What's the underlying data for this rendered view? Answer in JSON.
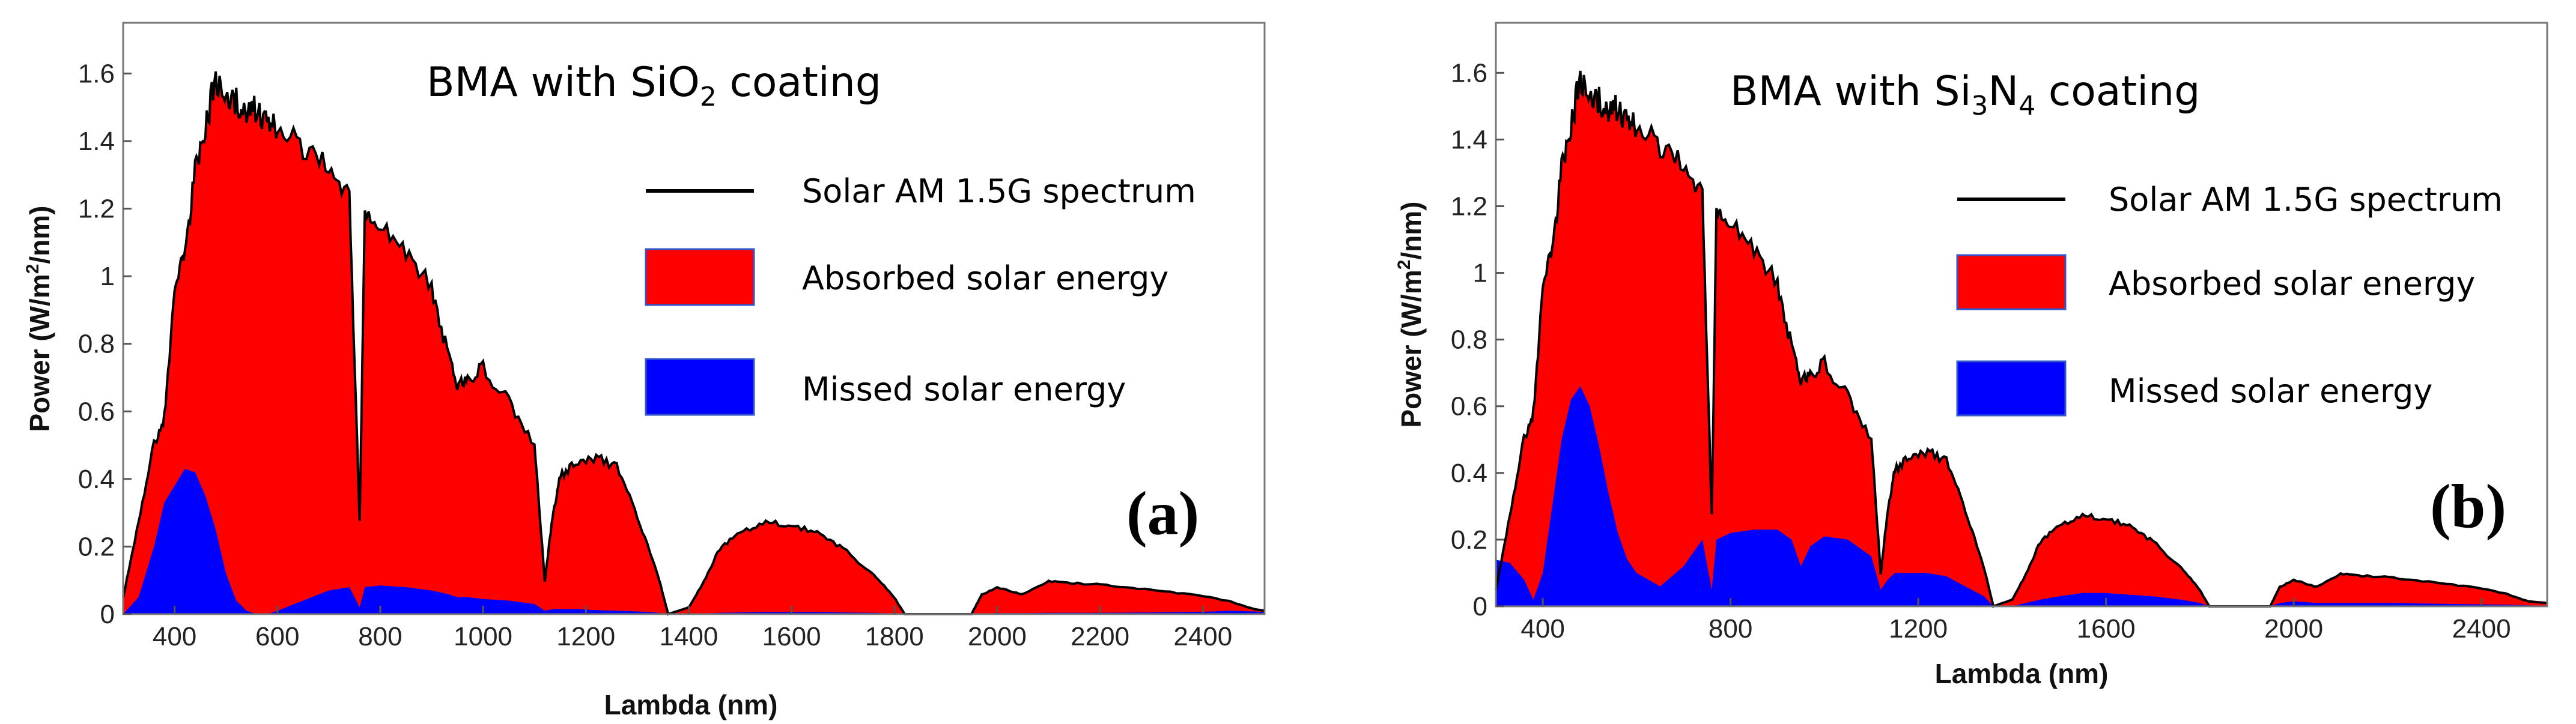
{
  "chart_data": [
    {
      "type": "area",
      "panel_label": "(a)",
      "title": "BMA with SiO₂ coating",
      "title_main": "BMA with SiO",
      "title_sub1": "2",
      "title_tail": " coating",
      "xlabel": "Lambda (nm)",
      "ylabel": "Power (W/m²/nm)",
      "ylabel_pre": "Power (W/m",
      "ylabel_sup": "2",
      "ylabel_post": "/nm)",
      "xlim": [
        300,
        2520
      ],
      "ylim": [
        0,
        1.75
      ],
      "xticks": [
        400,
        600,
        800,
        1000,
        1200,
        1400,
        1600,
        1800,
        2000,
        2200,
        2400
      ],
      "yticks": [
        0,
        0.2,
        0.4,
        0.6,
        0.8,
        1,
        1.2,
        1.4,
        1.6
      ],
      "legend": [
        "Solar AM 1.5G spectrum",
        "Absorbed solar energy",
        "Missed solar energy"
      ],
      "series": [
        {
          "name": "Solar AM 1.5G spectrum",
          "color": "#000000",
          "x": [
            300,
            330,
            360,
            380,
            400,
            420,
            440,
            460,
            480,
            500,
            520,
            540,
            560,
            580,
            600,
            650,
            700,
            740,
            760,
            770,
            800,
            850,
            900,
            930,
            950,
            970,
            1000,
            1050,
            1100,
            1120,
            1135,
            1150,
            1180,
            1220,
            1260,
            1300,
            1340,
            1360,
            1400,
            1430,
            1460,
            1500,
            1550,
            1600,
            1650,
            1700,
            1760,
            1800,
            1820,
            1950,
            1970,
            2000,
            2050,
            2100,
            2150,
            2200,
            2300,
            2400,
            2450,
            2500,
            2520
          ],
          "values": [
            0.05,
            0.28,
            0.52,
            0.6,
            0.98,
            1.1,
            1.35,
            1.5,
            1.62,
            1.6,
            1.56,
            1.52,
            1.55,
            1.5,
            1.48,
            1.43,
            1.35,
            1.28,
            0.28,
            1.22,
            1.2,
            1.1,
            1.0,
            0.8,
            0.7,
            0.72,
            0.75,
            0.65,
            0.52,
            0.1,
            0.3,
            0.42,
            0.46,
            0.48,
            0.45,
            0.3,
            0.12,
            0.0,
            0.02,
            0.1,
            0.2,
            0.25,
            0.28,
            0.27,
            0.25,
            0.2,
            0.12,
            0.05,
            0.0,
            0.0,
            0.06,
            0.08,
            0.06,
            0.1,
            0.095,
            0.09,
            0.075,
            0.055,
            0.04,
            0.015,
            0.01
          ]
        },
        {
          "name": "Absorbed solar energy",
          "color": "#ff0000"
        },
        {
          "name": "Missed solar energy",
          "color": "#0000ff",
          "x": [
            300,
            330,
            360,
            380,
            400,
            420,
            440,
            460,
            480,
            500,
            520,
            540,
            560,
            580,
            600,
            650,
            700,
            740,
            760,
            770,
            800,
            850,
            900,
            930,
            950,
            970,
            1000,
            1050,
            1100,
            1120,
            1135,
            1150,
            1180,
            1220,
            1260,
            1300,
            1340,
            1360,
            1400,
            1430,
            1460,
            1500,
            1550,
            1600,
            1650,
            1700,
            1760,
            1800,
            1820,
            1950,
            1970,
            2000,
            2050,
            2100,
            2150,
            2200,
            2300,
            2400,
            2450,
            2500,
            2520
          ],
          "values": [
            0.0,
            0.05,
            0.2,
            0.33,
            0.38,
            0.43,
            0.42,
            0.35,
            0.25,
            0.12,
            0.04,
            0.01,
            0.0,
            0.0,
            0.01,
            0.04,
            0.07,
            0.08,
            0.02,
            0.08,
            0.085,
            0.08,
            0.07,
            0.06,
            0.05,
            0.05,
            0.045,
            0.04,
            0.03,
            0.01,
            0.015,
            0.015,
            0.015,
            0.012,
            0.01,
            0.008,
            0.004,
            0.0,
            0.0,
            0.002,
            0.004,
            0.005,
            0.006,
            0.006,
            0.006,
            0.005,
            0.004,
            0.002,
            0.0,
            0.0,
            0.002,
            0.003,
            0.003,
            0.004,
            0.004,
            0.004,
            0.005,
            0.007,
            0.01,
            0.008,
            0.006
          ]
        }
      ]
    },
    {
      "type": "area",
      "panel_label": "(b)",
      "title": "BMA with Si₃N₄ coating",
      "title_main": "BMA with Si",
      "title_sub1": "3",
      "title_mid": "N",
      "title_sub2": "4",
      "title_tail": " coating",
      "xlabel": "Lambda (nm)",
      "ylabel": "Power (W/m²/nm)",
      "ylabel_pre": "Power (W/m",
      "ylabel_sup": "2",
      "ylabel_post": "/nm)",
      "xlim": [
        300,
        2540
      ],
      "ylim": [
        0,
        1.75
      ],
      "xticks": [
        400,
        800,
        1200,
        1600,
        2000,
        2400
      ],
      "yticks": [
        0,
        0.2,
        0.4,
        0.6,
        0.8,
        1,
        1.2,
        1.4,
        1.6
      ],
      "legend": [
        "Solar AM 1.5G spectrum",
        "Absorbed solar energy",
        "Missed solar energy"
      ],
      "series": [
        {
          "name": "Solar AM 1.5G spectrum",
          "color": "#000000",
          "x": [
            300,
            330,
            360,
            380,
            400,
            420,
            440,
            460,
            480,
            500,
            520,
            540,
            560,
            580,
            600,
            650,
            700,
            740,
            760,
            770,
            800,
            850,
            900,
            930,
            950,
            970,
            1000,
            1050,
            1100,
            1120,
            1135,
            1150,
            1180,
            1220,
            1260,
            1300,
            1340,
            1360,
            1400,
            1430,
            1460,
            1500,
            1550,
            1600,
            1650,
            1700,
            1760,
            1800,
            1820,
            1950,
            1970,
            2000,
            2050,
            2100,
            2150,
            2200,
            2300,
            2400,
            2450,
            2500,
            2540
          ],
          "values": [
            0.05,
            0.28,
            0.52,
            0.6,
            0.98,
            1.1,
            1.35,
            1.5,
            1.62,
            1.6,
            1.56,
            1.52,
            1.55,
            1.5,
            1.48,
            1.43,
            1.35,
            1.28,
            0.28,
            1.22,
            1.2,
            1.1,
            1.0,
            0.8,
            0.7,
            0.72,
            0.75,
            0.65,
            0.52,
            0.1,
            0.3,
            0.42,
            0.46,
            0.48,
            0.45,
            0.3,
            0.12,
            0.0,
            0.02,
            0.1,
            0.2,
            0.25,
            0.28,
            0.27,
            0.25,
            0.2,
            0.12,
            0.05,
            0.0,
            0.0,
            0.06,
            0.08,
            0.06,
            0.1,
            0.095,
            0.09,
            0.075,
            0.055,
            0.04,
            0.015,
            0.01
          ]
        },
        {
          "name": "Absorbed solar energy",
          "color": "#ff0000"
        },
        {
          "name": "Missed solar energy",
          "color": "#0000ff",
          "x": [
            300,
            330,
            360,
            380,
            400,
            420,
            440,
            460,
            480,
            500,
            520,
            540,
            560,
            580,
            600,
            650,
            700,
            740,
            760,
            770,
            800,
            850,
            900,
            930,
            950,
            970,
            1000,
            1050,
            1100,
            1120,
            1135,
            1150,
            1180,
            1220,
            1260,
            1300,
            1340,
            1360,
            1400,
            1430,
            1460,
            1500,
            1550,
            1600,
            1650,
            1700,
            1760,
            1800,
            1820,
            1950,
            1970,
            2000,
            2050,
            2100,
            2150,
            2200,
            2300,
            2400,
            2450,
            2500,
            2540
          ],
          "values": [
            0.14,
            0.13,
            0.08,
            0.02,
            0.1,
            0.3,
            0.5,
            0.62,
            0.66,
            0.6,
            0.48,
            0.34,
            0.22,
            0.14,
            0.1,
            0.06,
            0.12,
            0.2,
            0.05,
            0.2,
            0.22,
            0.23,
            0.23,
            0.2,
            0.12,
            0.18,
            0.21,
            0.2,
            0.15,
            0.05,
            0.08,
            0.1,
            0.1,
            0.1,
            0.09,
            0.06,
            0.03,
            0.0,
            0.0,
            0.01,
            0.02,
            0.03,
            0.04,
            0.04,
            0.035,
            0.03,
            0.02,
            0.01,
            0.0,
            0.0,
            0.01,
            0.015,
            0.01,
            0.01,
            0.01,
            0.01,
            0.008,
            0.006,
            0.005,
            0.003,
            0.002
          ]
        }
      ]
    }
  ]
}
